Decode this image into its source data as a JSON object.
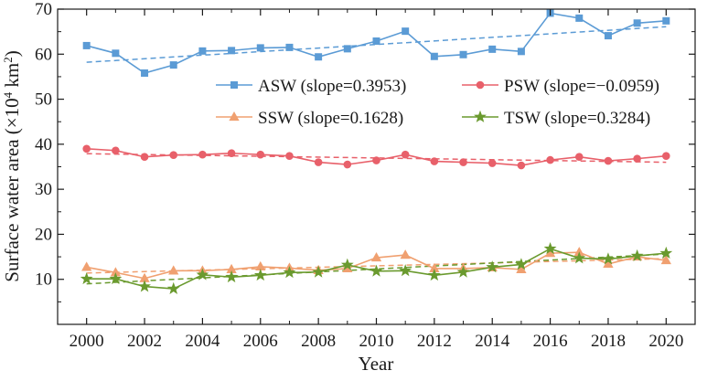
{
  "chart_data": {
    "type": "line",
    "xlabel": "Year",
    "ylabel": {
      "main": "Surface water area (×10",
      "sup": "4",
      "unit": " km",
      "sup2": "2",
      "close": ")"
    },
    "x": [
      2000,
      2001,
      2002,
      2003,
      2004,
      2005,
      2006,
      2007,
      2008,
      2009,
      2010,
      2011,
      2012,
      2013,
      2014,
      2015,
      2016,
      2017,
      2018,
      2019,
      2020
    ],
    "xlim": [
      1999,
      2021
    ],
    "ylim": [
      0,
      70
    ],
    "xticks": [
      "2000",
      "2002",
      "2004",
      "2006",
      "2008",
      "2010",
      "2012",
      "2014",
      "2016",
      "2018",
      "2020"
    ],
    "yticks": [
      "10",
      "20",
      "30",
      "40",
      "50",
      "60",
      "70"
    ],
    "grid": false,
    "legend_position": "center-right",
    "series": [
      {
        "name": "ASW (slope=0.3953)",
        "color": "#5b9bd5",
        "marker": "square",
        "values": [
          61.9,
          60.2,
          55.8,
          57.6,
          60.7,
          60.8,
          61.4,
          61.5,
          59.4,
          61.2,
          62.9,
          65.1,
          59.5,
          59.9,
          61.1,
          60.6,
          69.1,
          68.0,
          64.1,
          66.9,
          67.4
        ],
        "trend": [
          58.2,
          66.1
        ]
      },
      {
        "name": "PSW (slope=−0.0959)",
        "color": "#e8606a",
        "marker": "circle",
        "values": [
          39.0,
          38.6,
          37.2,
          37.6,
          37.7,
          38.0,
          37.7,
          37.4,
          36.0,
          35.5,
          36.4,
          37.7,
          36.2,
          36.0,
          35.8,
          35.3,
          36.5,
          37.2,
          36.3,
          36.8,
          37.4
        ],
        "trend": [
          37.9,
          36.0
        ]
      },
      {
        "name": "SSW (slope=0.1628)",
        "color": "#f0a070",
        "marker": "triangle",
        "values": [
          12.7,
          11.5,
          10.2,
          11.9,
          11.9,
          12.2,
          12.8,
          12.5,
          12.0,
          12.4,
          14.8,
          15.4,
          12.4,
          12.4,
          12.6,
          12.2,
          15.8,
          16.0,
          13.4,
          15.0,
          14.2
        ],
        "trend": [
          11.4,
          14.6
        ]
      },
      {
        "name": "TSW (slope=0.3284)",
        "color": "#6a9a2e",
        "marker": "star",
        "values": [
          10.1,
          10.1,
          8.4,
          7.9,
          11.0,
          10.5,
          10.9,
          11.5,
          11.6,
          13.2,
          11.8,
          11.9,
          10.9,
          11.6,
          12.7,
          13.3,
          16.8,
          14.7,
          14.5,
          15.2,
          15.8
        ],
        "trend": [
          9.0,
          15.6
        ]
      }
    ]
  }
}
